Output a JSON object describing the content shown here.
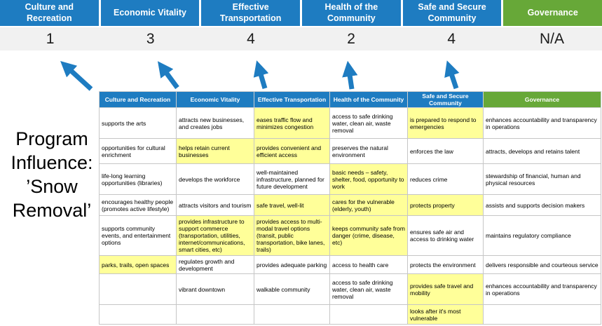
{
  "title": {
    "full": "Program Influence: ’Snow Removal’",
    "lines": [
      "Program",
      "Influence:",
      "’Snow",
      "Removal’"
    ]
  },
  "pillars": [
    {
      "label": "Culture and Recreation",
      "score": "1",
      "theme": "blue"
    },
    {
      "label": "Economic Vitality",
      "score": "3",
      "theme": "blue"
    },
    {
      "label": "Effective Transportation",
      "score": "4",
      "theme": "blue"
    },
    {
      "label": "Health of the Community",
      "score": "2",
      "theme": "blue"
    },
    {
      "label": "Safe and Secure Community",
      "score": "4",
      "theme": "blue"
    },
    {
      "label": "Governance",
      "score": "N/A",
      "theme": "green"
    }
  ],
  "icons": {
    "influence_arrow": "up-arrow"
  },
  "matrix": {
    "headers": [
      {
        "label": "Culture and Recreation",
        "theme": "blue"
      },
      {
        "label": "Economic Vitality",
        "theme": "blue"
      },
      {
        "label": "Effective Transportation",
        "theme": "blue"
      },
      {
        "label": "Health of the Community",
        "theme": "blue"
      },
      {
        "label": "Safe and Secure Community",
        "theme": "blue"
      },
      {
        "label": "Governance",
        "theme": "green"
      }
    ],
    "rows": [
      [
        {
          "text": "supports the arts",
          "highlight": false
        },
        {
          "text": "attracts new businesses, and creates jobs",
          "highlight": false
        },
        {
          "text": "eases traffic flow and minimizes congestion",
          "highlight": true
        },
        {
          "text": "access to safe drinking water, clean air, waste removal",
          "highlight": false
        },
        {
          "text": "is prepared to respond to emergencies",
          "highlight": true
        },
        {
          "text": "enhances accountability and transparency in operations",
          "highlight": false
        }
      ],
      [
        {
          "text": "opportunities for cultural enrichment",
          "highlight": false
        },
        {
          "text": "helps retain current businesses",
          "highlight": true
        },
        {
          "text": "provides convenient and efficient access",
          "highlight": true
        },
        {
          "text": "preserves the natural environment",
          "highlight": false
        },
        {
          "text": "enforces the law",
          "highlight": false
        },
        {
          "text": "attracts, develops and retains talent",
          "highlight": false
        }
      ],
      [
        {
          "text": "life-long learning opportunities (libraries)",
          "highlight": false
        },
        {
          "text": "develops the workforce",
          "highlight": false
        },
        {
          "text": "well-maintained infrastructure, planned for future development",
          "highlight": false
        },
        {
          "text": "basic needs – safety, shelter, food, opportunity to work",
          "highlight": true
        },
        {
          "text": "reduces crime",
          "highlight": false
        },
        {
          "text": "stewardship of financial, human and physical resources",
          "highlight": false
        }
      ],
      [
        {
          "text": "encourages healthy people (promotes active lifestyle)",
          "highlight": false
        },
        {
          "text": "attracts visitors and tourism",
          "highlight": false
        },
        {
          "text": "safe travel, well-lit",
          "highlight": true
        },
        {
          "text": "cares for the vulnerable (elderly, youth)",
          "highlight": true
        },
        {
          "text": "protects property",
          "highlight": true
        },
        {
          "text": "assists and supports decision makers",
          "highlight": false
        }
      ],
      [
        {
          "text": "supports community events, and entertainment options",
          "highlight": false
        },
        {
          "text": "provides infrastructure to support commerce (transportation, utilities, internet/communications, smart cities, etc)",
          "highlight": true
        },
        {
          "text": "provides access to multi-modal travel options (transit, public transportation, bike lanes, trails)",
          "highlight": true
        },
        {
          "text": "keeps community safe from danger (crime, disease, etc)",
          "highlight": true
        },
        {
          "text": "ensures safe air and access to drinking water",
          "highlight": false
        },
        {
          "text": "maintains regulatory compliance",
          "highlight": false
        }
      ],
      [
        {
          "text": "parks, trails, open spaces",
          "highlight": true
        },
        {
          "text": "regulates growth and development",
          "highlight": false
        },
        {
          "text": "provides adequate parking",
          "highlight": false
        },
        {
          "text": "access to health care",
          "highlight": false
        },
        {
          "text": "protects the environment",
          "highlight": false
        },
        {
          "text": "delivers responsible and courteous service",
          "highlight": false
        }
      ],
      [
        {
          "text": "",
          "highlight": false
        },
        {
          "text": "vibrant downtown",
          "highlight": false
        },
        {
          "text": "walkable community",
          "highlight": false
        },
        {
          "text": "access to safe drinking water, clean air, waste removal",
          "highlight": false
        },
        {
          "text": "provides safe travel and mobility",
          "highlight": true
        },
        {
          "text": "enhances accountability and transparency in operations",
          "highlight": false
        }
      ],
      [
        {
          "text": "",
          "highlight": false
        },
        {
          "text": "",
          "highlight": false
        },
        {
          "text": "",
          "highlight": false
        },
        {
          "text": "",
          "highlight": false
        },
        {
          "text": "looks after it's most vulnerable",
          "highlight": true
        },
        {
          "text": "",
          "highlight": false
        }
      ]
    ]
  },
  "colors": {
    "pillar_blue": "#1E7CC1",
    "pillar_green": "#67A838",
    "highlight": "#FFFF99",
    "score_band": "#F1F1F1",
    "arrow": "#1E7CC1"
  }
}
